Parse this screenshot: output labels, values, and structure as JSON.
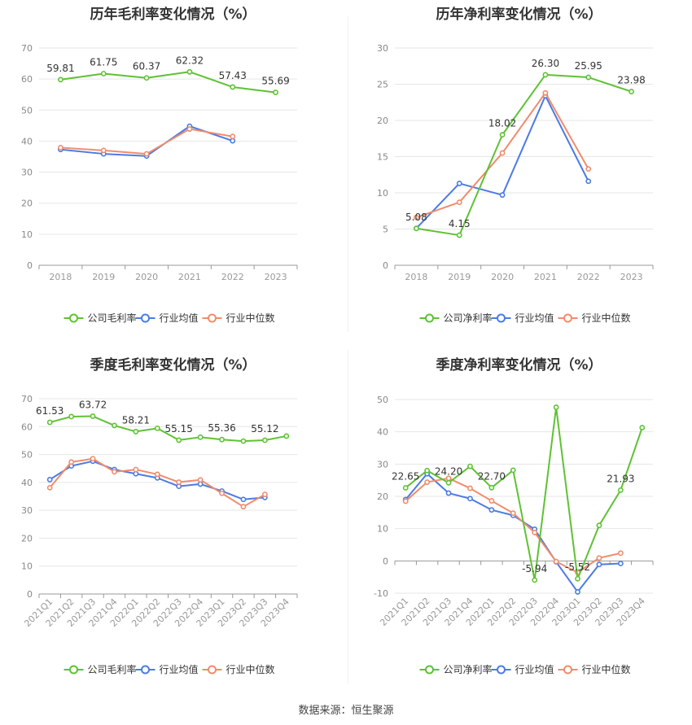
{
  "source_text": "数据来源：恒生聚源",
  "colors": {
    "company": "#5ec234",
    "avg": "#4b7be5",
    "median": "#f08c6c"
  },
  "chart_data": [
    {
      "type": "line",
      "title": "历年毛利率变化情况（%）",
      "categories": [
        "2018",
        "2019",
        "2020",
        "2021",
        "2022",
        "2023"
      ],
      "ylim": [
        0,
        70
      ],
      "yticks": [
        0,
        10,
        20,
        30,
        40,
        50,
        60,
        70
      ],
      "grid": true,
      "legend_position": "bottom",
      "series": [
        {
          "name": "公司毛利率",
          "values": [
            59.81,
            61.75,
            60.37,
            62.32,
            57.43,
            55.69
          ],
          "labels": [
            "59.81",
            "61.75",
            "60.37",
            "62.32",
            "57.43",
            "55.69"
          ]
        },
        {
          "name": "行业均值",
          "values": [
            37.3,
            35.9,
            35.2,
            44.8,
            40.1,
            null
          ]
        },
        {
          "name": "行业中位数",
          "values": [
            37.9,
            37.0,
            35.9,
            43.9,
            41.5,
            null
          ]
        }
      ]
    },
    {
      "type": "line",
      "title": "历年净利率变化情况（%）",
      "categories": [
        "2018",
        "2019",
        "2020",
        "2021",
        "2022",
        "2023"
      ],
      "ylim": [
        0,
        30
      ],
      "yticks": [
        0,
        5,
        10,
        15,
        20,
        25,
        30
      ],
      "grid": true,
      "legend_position": "bottom",
      "series": [
        {
          "name": "公司净利率",
          "values": [
            5.08,
            4.15,
            18.02,
            26.3,
            25.95,
            23.98
          ],
          "labels": [
            "5.08",
            "4.15",
            "18.02",
            "26.30",
            "25.95",
            "23.98"
          ]
        },
        {
          "name": "行业均值",
          "values": [
            5.1,
            11.3,
            9.7,
            23.4,
            11.6,
            null
          ]
        },
        {
          "name": "行业中位数",
          "values": [
            6.6,
            8.7,
            15.5,
            23.8,
            13.3,
            null
          ]
        }
      ]
    },
    {
      "type": "line",
      "title": "季度毛利率变化情况（%）",
      "categories": [
        "2021Q1",
        "2021Q2",
        "2021Q3",
        "2021Q4",
        "2022Q1",
        "2022Q2",
        "2022Q3",
        "2022Q4",
        "2023Q1",
        "2023Q2",
        "2023Q3",
        "2023Q4"
      ],
      "ylim": [
        0,
        70
      ],
      "yticks": [
        0,
        10,
        20,
        30,
        40,
        50,
        60,
        70
      ],
      "grid": true,
      "legend_position": "bottom",
      "series": [
        {
          "name": "公司毛利率",
          "values": [
            61.53,
            63.6,
            63.72,
            60.4,
            58.21,
            59.4,
            55.15,
            56.2,
            55.36,
            54.8,
            55.12,
            56.6
          ],
          "labels": [
            "61.53",
            "",
            "63.72",
            "",
            "58.21",
            "",
            "55.15",
            "",
            "55.36",
            "",
            "55.12",
            ""
          ]
        },
        {
          "name": "行业均值",
          "values": [
            41.0,
            45.9,
            47.6,
            44.6,
            43.1,
            41.6,
            38.6,
            39.4,
            36.9,
            33.9,
            34.6,
            null
          ]
        },
        {
          "name": "行业中位数",
          "values": [
            38.1,
            47.3,
            48.5,
            43.8,
            44.6,
            42.9,
            40.1,
            40.9,
            36.1,
            31.3,
            35.7,
            null
          ]
        }
      ]
    },
    {
      "type": "line",
      "title": "季度净利率变化情况（%）",
      "categories": [
        "2021Q1",
        "2021Q2",
        "2021Q3",
        "2021Q4",
        "2022Q1",
        "2022Q2",
        "2022Q3",
        "2022Q4",
        "2023Q1",
        "2023Q2",
        "2023Q3",
        "2023Q4"
      ],
      "ylim": [
        -10,
        50
      ],
      "yticks": [
        -10,
        0,
        10,
        20,
        30,
        40,
        50
      ],
      "grid": true,
      "legend_position": "bottom",
      "series": [
        {
          "name": "公司净利率",
          "values": [
            22.65,
            28.0,
            24.2,
            29.3,
            22.7,
            28.1,
            -5.94,
            47.6,
            -5.52,
            11.0,
            21.93,
            41.3
          ],
          "labels": [
            "22.65",
            "",
            "24.20",
            "",
            "22.70",
            "",
            "-5.94",
            "",
            "-5.52",
            "",
            "21.93",
            ""
          ]
        },
        {
          "name": "行业均值",
          "values": [
            19.0,
            27.0,
            21.0,
            19.3,
            15.8,
            14.1,
            9.8,
            -0.3,
            -9.6,
            -1.1,
            -0.8,
            null
          ]
        },
        {
          "name": "行业中位数",
          "values": [
            18.5,
            24.4,
            25.6,
            22.5,
            18.6,
            14.8,
            8.8,
            -0.2,
            -3.6,
            0.9,
            2.4,
            null
          ]
        }
      ]
    }
  ]
}
